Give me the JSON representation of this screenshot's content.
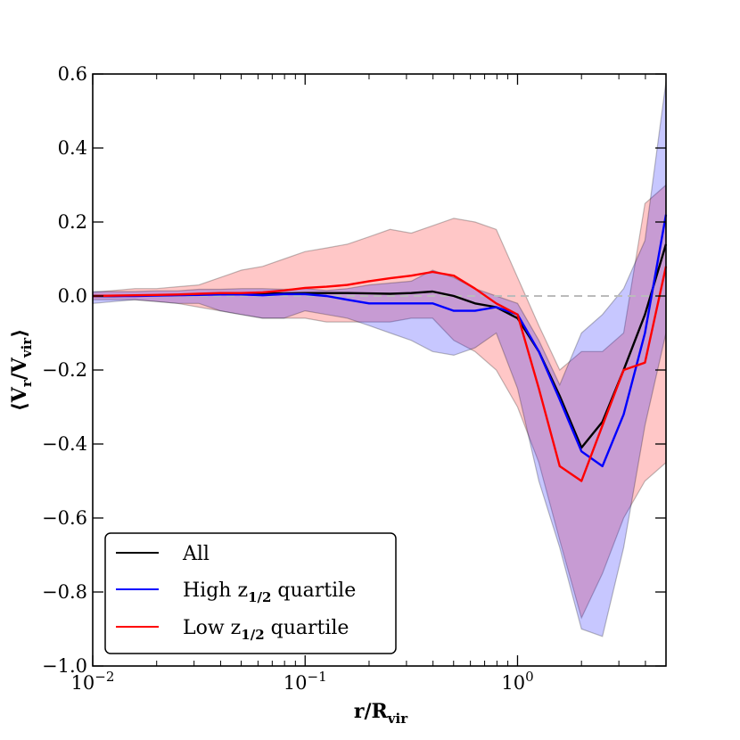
{
  "chart_data": {
    "type": "line",
    "xscale": "log",
    "xlim": [
      0.01,
      5
    ],
    "ylim": [
      -1.0,
      0.6
    ],
    "xlabel": {
      "main": "r/R",
      "sub": "vir"
    },
    "ylabel": {
      "open": "⟨",
      "v1": "V",
      "s1": "r",
      "slash": "/",
      "v2": "V",
      "s2": "vir",
      "close": "⟩"
    },
    "x_ticks": [
      {
        "value": 0.01,
        "base": "10",
        "exp": "−2"
      },
      {
        "value": 0.1,
        "base": "10",
        "exp": "−1"
      },
      {
        "value": 1,
        "base": "10",
        "exp": "0"
      }
    ],
    "y_ticks": [
      {
        "value": 0.6,
        "label": "0.6"
      },
      {
        "value": 0.4,
        "label": "0.4"
      },
      {
        "value": 0.2,
        "label": "0.2"
      },
      {
        "value": 0.0,
        "label": "0.0"
      },
      {
        "value": -0.2,
        "label": "−0.2"
      },
      {
        "value": -0.4,
        "label": "−0.4"
      },
      {
        "value": -0.6,
        "label": "−0.6"
      },
      {
        "value": -0.8,
        "label": "−0.8"
      },
      {
        "value": -1.0,
        "label": "−1.0"
      }
    ],
    "reference_line": {
      "y": 0.0,
      "style": "dashed",
      "color": "#bbbbbb"
    },
    "x": [
      0.01,
      0.0126,
      0.0158,
      0.02,
      0.0251,
      0.0316,
      0.0398,
      0.0501,
      0.0631,
      0.0794,
      0.1,
      0.126,
      0.158,
      0.2,
      0.251,
      0.316,
      0.398,
      0.501,
      0.631,
      0.794,
      1.0,
      1.26,
      1.58,
      2.0,
      2.51,
      3.16,
      3.98,
      5.0
    ],
    "series": [
      {
        "name": "All",
        "color": "#000000",
        "values": [
          0.0,
          0.0,
          0.001,
          0.002,
          0.003,
          0.004,
          0.005,
          0.006,
          0.007,
          0.007,
          0.008,
          0.008,
          0.008,
          0.007,
          0.006,
          0.008,
          0.012,
          0.0,
          -0.02,
          -0.03,
          -0.06,
          -0.15,
          -0.27,
          -0.41,
          -0.34,
          -0.2,
          -0.05,
          0.14
        ]
      },
      {
        "name": "High z1/2 quartile",
        "color": "#0000ff",
        "band_color": "#0000ff",
        "values": [
          0.0,
          0.0,
          0.0,
          0.001,
          0.002,
          0.003,
          0.004,
          0.004,
          0.002,
          0.005,
          0.005,
          0.0,
          -0.01,
          -0.02,
          -0.02,
          -0.02,
          -0.02,
          -0.04,
          -0.04,
          -0.03,
          -0.05,
          -0.15,
          -0.28,
          -0.42,
          -0.46,
          -0.32,
          -0.1,
          0.22
        ],
        "lower": [
          -0.02,
          -0.015,
          -0.01,
          -0.015,
          -0.02,
          -0.02,
          -0.04,
          -0.05,
          -0.06,
          -0.06,
          -0.04,
          -0.05,
          -0.06,
          -0.08,
          -0.1,
          -0.12,
          -0.15,
          -0.16,
          -0.14,
          -0.1,
          -0.25,
          -0.5,
          -0.68,
          -0.9,
          -0.92,
          -0.68,
          -0.35,
          -0.1
        ],
        "upper": [
          0.012,
          0.012,
          0.012,
          0.014,
          0.014,
          0.018,
          0.018,
          0.02,
          0.02,
          0.018,
          0.02,
          0.015,
          0.02,
          0.03,
          0.035,
          0.04,
          0.07,
          0.05,
          0.02,
          0.0,
          -0.02,
          -0.12,
          -0.24,
          -0.1,
          -0.05,
          0.02,
          0.15,
          0.58
        ]
      },
      {
        "name": "Low z1/2 quartile",
        "color": "#ff0000",
        "band_color": "#ff0000",
        "values": [
          0.0,
          0.001,
          0.002,
          0.003,
          0.004,
          0.006,
          0.008,
          0.008,
          0.01,
          0.015,
          0.022,
          0.025,
          0.03,
          0.04,
          0.048,
          0.055,
          0.065,
          0.055,
          0.02,
          -0.02,
          -0.05,
          -0.25,
          -0.46,
          -0.5,
          -0.35,
          -0.2,
          -0.18,
          0.08
        ]
      }
    ],
    "low_band": {
      "lower": [
        -0.01,
        -0.01,
        -0.01,
        -0.015,
        -0.02,
        -0.03,
        -0.04,
        -0.05,
        -0.06,
        -0.06,
        -0.06,
        -0.07,
        -0.07,
        -0.07,
        -0.07,
        -0.06,
        -0.06,
        -0.12,
        -0.15,
        -0.2,
        -0.3,
        -0.45,
        -0.66,
        -0.87,
        -0.75,
        -0.6,
        -0.5,
        -0.45
      ],
      "upper": [
        0.01,
        0.015,
        0.02,
        0.02,
        0.025,
        0.03,
        0.05,
        0.07,
        0.08,
        0.1,
        0.12,
        0.13,
        0.14,
        0.16,
        0.18,
        0.17,
        0.19,
        0.21,
        0.2,
        0.18,
        0.05,
        -0.08,
        -0.2,
        -0.15,
        -0.15,
        -0.1,
        0.25,
        0.3
      ]
    },
    "legend": {
      "position": "lower-left",
      "items": [
        {
          "main": "All",
          "sub": "",
          "tail": ""
        },
        {
          "main": "High z",
          "sub": "1/2",
          "tail": " quartile"
        },
        {
          "main": "Low z",
          "sub": "1/2",
          "tail": " quartile"
        }
      ]
    }
  }
}
